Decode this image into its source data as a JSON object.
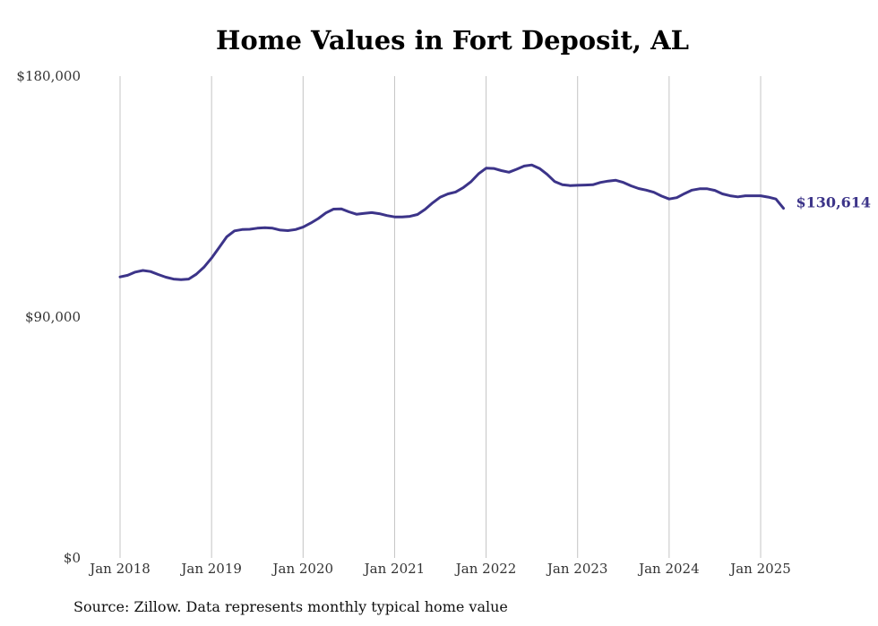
{
  "chart_data": {
    "type": "line",
    "title": "Home Values in Fort Deposit, AL",
    "xlabel": "",
    "ylabel": "",
    "ylim": [
      0,
      180000
    ],
    "yticks": [
      {
        "value": 0,
        "label": "$0"
      },
      {
        "value": 90000,
        "label": "$90,000"
      },
      {
        "value": 180000,
        "label": "$180,000"
      }
    ],
    "xticks": [
      {
        "value": "2018-01",
        "label": "Jan 2018"
      },
      {
        "value": "2019-01",
        "label": "Jan 2019"
      },
      {
        "value": "2020-01",
        "label": "Jan 2020"
      },
      {
        "value": "2021-01",
        "label": "Jan 2021"
      },
      {
        "value": "2022-01",
        "label": "Jan 2022"
      },
      {
        "value": "2023-01",
        "label": "Jan 2023"
      },
      {
        "value": "2024-01",
        "label": "Jan 2024"
      },
      {
        "value": "2025-01",
        "label": "Jan 2025"
      }
    ],
    "grid": {
      "vertical": true,
      "horizontal": false
    },
    "legend": "none",
    "line_color": "#3c3489",
    "end_label": "$130,614",
    "series": [
      {
        "x": [
          "2018-01",
          "2018-02",
          "2018-03",
          "2018-04",
          "2018-05",
          "2018-06",
          "2018-07",
          "2018-08",
          "2018-09",
          "2018-10",
          "2018-11",
          "2018-12",
          "2019-01",
          "2019-02",
          "2019-03",
          "2019-04",
          "2019-05",
          "2019-06",
          "2019-07",
          "2019-08",
          "2019-09",
          "2019-10",
          "2019-11",
          "2019-12",
          "2020-01",
          "2020-02",
          "2020-03",
          "2020-04",
          "2020-05",
          "2020-06",
          "2020-07",
          "2020-08",
          "2020-09",
          "2020-10",
          "2020-11",
          "2020-12",
          "2021-01",
          "2021-02",
          "2021-03",
          "2021-04",
          "2021-05",
          "2021-06",
          "2021-07",
          "2021-08",
          "2021-09",
          "2021-10",
          "2021-11",
          "2021-12",
          "2022-01",
          "2022-02",
          "2022-03",
          "2022-04",
          "2022-05",
          "2022-06",
          "2022-07",
          "2022-08",
          "2022-09",
          "2022-10",
          "2022-11",
          "2022-12",
          "2023-01",
          "2023-02",
          "2023-03",
          "2023-04",
          "2023-05",
          "2023-06",
          "2023-07",
          "2023-08",
          "2023-09",
          "2023-10",
          "2023-11",
          "2023-12",
          "2024-01",
          "2024-02",
          "2024-03",
          "2024-04",
          "2024-05",
          "2024-06",
          "2024-07",
          "2024-08",
          "2024-09",
          "2024-10",
          "2024-11",
          "2024-12",
          "2025-01",
          "2025-02",
          "2025-03",
          "2025-04"
        ],
        "values": [
          105000,
          105600,
          106800,
          107400,
          107000,
          105900,
          104900,
          104200,
          104000,
          104200,
          106000,
          108600,
          112000,
          116000,
          120000,
          122200,
          122700,
          122800,
          123200,
          123400,
          123200,
          122500,
          122300,
          122700,
          123600,
          125100,
          126800,
          128900,
          130300,
          130400,
          129300,
          128400,
          128700,
          129000,
          128600,
          127900,
          127400,
          127400,
          127600,
          128300,
          130200,
          132700,
          134800,
          136000,
          136700,
          138300,
          140500,
          143500,
          145600,
          145500,
          144700,
          144100,
          145200,
          146400,
          146800,
          145500,
          143300,
          140600,
          139400,
          139100,
          139200,
          139300,
          139400,
          140300,
          140800,
          141100,
          140300,
          139000,
          138000,
          137400,
          136600,
          135200,
          134100,
          134600,
          136100,
          137400,
          137900,
          137900,
          137300,
          136000,
          135300,
          134900,
          135300,
          135300,
          135300,
          134800,
          134100,
          130614
        ]
      }
    ]
  },
  "source_note": "Source: Zillow. Data represents monthly typical home value"
}
